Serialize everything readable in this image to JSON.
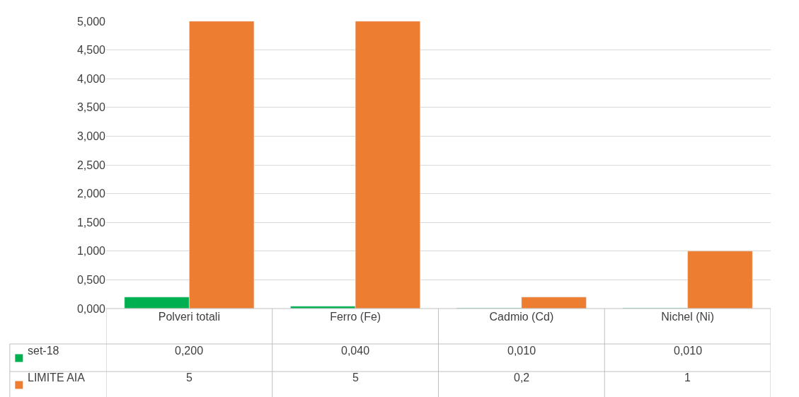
{
  "chart_data": {
    "type": "bar",
    "categories": [
      "Polveri totali",
      "Ferro (Fe)",
      "Cadmio (Cd)",
      "Nichel (Ni)"
    ],
    "series": [
      {
        "name": "set-18",
        "color": "#00b050",
        "values": [
          0.2,
          0.04,
          0.01,
          0.01
        ],
        "value_labels": [
          "0,200",
          "0,040",
          "0,010",
          "0,010"
        ]
      },
      {
        "name": "LIMITE AIA",
        "color": "#ed7d31",
        "values": [
          5,
          5,
          0.2,
          1
        ],
        "value_labels": [
          "5",
          "5",
          "0,2",
          "1"
        ]
      }
    ],
    "ylim": [
      0,
      5
    ],
    "yticks": [
      {
        "value": 0,
        "label": "0,000"
      },
      {
        "value": 0.5,
        "label": "0,500"
      },
      {
        "value": 1,
        "label": "1,000"
      },
      {
        "value": 1.5,
        "label": "1,500"
      },
      {
        "value": 2,
        "label": "2,000"
      },
      {
        "value": 2.5,
        "label": "2,500"
      },
      {
        "value": 3,
        "label": "3,000"
      },
      {
        "value": 3.5,
        "label": "3,500"
      },
      {
        "value": 4,
        "label": "4,000"
      },
      {
        "value": 4.5,
        "label": "4,500"
      },
      {
        "value": 5,
        "label": "5,000"
      }
    ],
    "grid": "y",
    "legend": "bottom"
  }
}
